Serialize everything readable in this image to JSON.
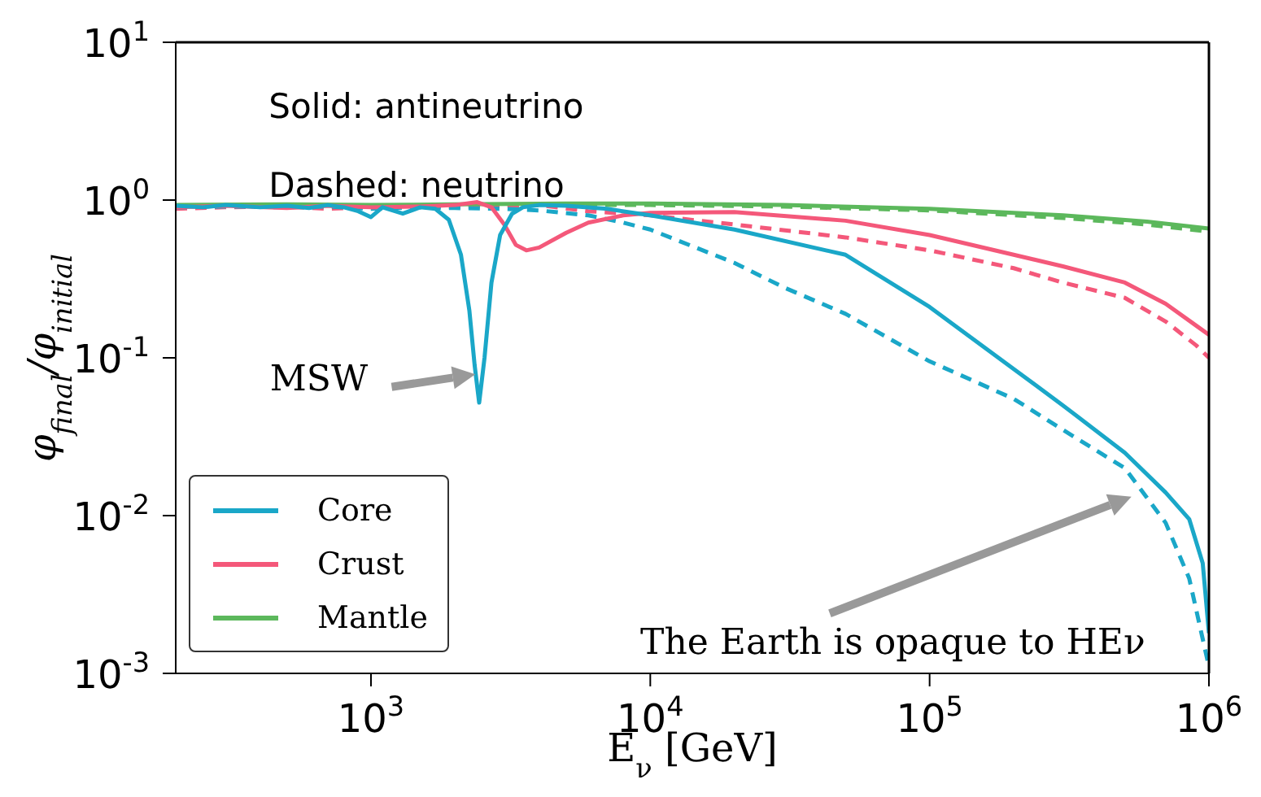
{
  "chart_data": {
    "type": "line",
    "xlabel": "E$_{ν}$ [GeV]",
    "ylabel": "φ$_{final}$/φ$_{initial}$",
    "log": "xy",
    "xlim": [
      200,
      1000000
    ],
    "ylim": [
      0.001,
      10
    ],
    "xticks": [
      {
        "value": 1000,
        "label": "10$^{3}$"
      },
      {
        "value": 10000,
        "label": "10$^{4}$"
      },
      {
        "value": 100000,
        "label": "10$^{5}$"
      },
      {
        "value": 1000000,
        "label": "10$^{6}$"
      }
    ],
    "yticks": [
      {
        "value": 0.001,
        "label": "10$^{-3}$"
      },
      {
        "value": 0.01,
        "label": "10$^{-2}$"
      },
      {
        "value": 0.1,
        "label": "10$^{-1}$"
      },
      {
        "value": 1,
        "label": "10$^{0}$"
      },
      {
        "value": 10,
        "label": "10$^{1}$"
      }
    ],
    "grid": false,
    "legend": "bottom left",
    "annotations": [
      "Solid: antineutrino",
      "Dashed: neutrino",
      "MSW",
      "The Earth is opaque to HEν"
    ],
    "series": [
      {
        "name": "Core",
        "color": "#1aa7c8",
        "line_style": "solid",
        "x": [
          200,
          250,
          300,
          400,
          500,
          600,
          700,
          800,
          900,
          1000,
          1100,
          1300,
          1500,
          1700,
          1900,
          2100,
          2250,
          2350,
          2440,
          2550,
          2700,
          2900,
          3200,
          3500,
          4000,
          5000,
          7000,
          10000,
          20000,
          50000,
          100000,
          200000,
          300000,
          500000,
          700000,
          850000,
          950000,
          1000000
        ],
        "values": [
          0.92,
          0.9,
          0.93,
          0.9,
          0.92,
          0.89,
          0.93,
          0.9,
          0.85,
          0.78,
          0.9,
          0.82,
          0.9,
          0.88,
          0.75,
          0.45,
          0.2,
          0.09,
          0.052,
          0.1,
          0.3,
          0.6,
          0.82,
          0.9,
          0.93,
          0.92,
          0.88,
          0.8,
          0.65,
          0.45,
          0.21,
          0.085,
          0.05,
          0.025,
          0.014,
          0.0095,
          0.005,
          0.0018
        ]
      },
      {
        "name": "Crust",
        "color": "#f4587a",
        "line_style": "solid",
        "x": [
          200,
          300,
          500,
          700,
          1000,
          1500,
          2000,
          2400,
          2700,
          3000,
          3300,
          3600,
          4000,
          5000,
          6000,
          8000,
          10000,
          20000,
          50000,
          100000,
          200000,
          300000,
          500000,
          700000,
          900000,
          1000000
        ],
        "values": [
          0.9,
          0.92,
          0.89,
          0.92,
          0.9,
          0.91,
          0.93,
          0.97,
          0.9,
          0.7,
          0.52,
          0.48,
          0.5,
          0.62,
          0.72,
          0.8,
          0.83,
          0.84,
          0.74,
          0.6,
          0.45,
          0.38,
          0.3,
          0.22,
          0.16,
          0.14
        ]
      },
      {
        "name": "Mantle",
        "color": "#5cb85c",
        "line_style": "solid",
        "x": [
          200,
          500,
          1000,
          2000,
          5000,
          10000,
          30000,
          100000,
          300000,
          600000,
          1000000
        ],
        "values": [
          0.93,
          0.94,
          0.93,
          0.94,
          0.95,
          0.95,
          0.93,
          0.88,
          0.8,
          0.73,
          0.66
        ]
      },
      {
        "color": "#1aa7c8",
        "line_style": "dashed",
        "x": [
          200,
          300,
          500,
          700,
          1000,
          1500,
          2000,
          3000,
          4000,
          6000,
          8000,
          10000,
          20000,
          30000,
          50000,
          100000,
          200000,
          300000,
          500000,
          700000,
          850000,
          1000000
        ],
        "values": [
          0.9,
          0.91,
          0.9,
          0.91,
          0.88,
          0.9,
          0.89,
          0.88,
          0.86,
          0.8,
          0.72,
          0.65,
          0.4,
          0.28,
          0.19,
          0.095,
          0.055,
          0.035,
          0.02,
          0.009,
          0.004,
          0.0011
        ]
      },
      {
        "color": "#f4587a",
        "line_style": "dashed",
        "x": [
          200,
          300,
          500,
          700,
          1000,
          1500,
          2000,
          3000,
          4000,
          6000,
          10000,
          20000,
          50000,
          100000,
          200000,
          300000,
          500000,
          700000,
          900000,
          1000000
        ],
        "values": [
          0.88,
          0.9,
          0.91,
          0.88,
          0.9,
          0.92,
          0.9,
          0.92,
          0.93,
          0.85,
          0.8,
          0.7,
          0.58,
          0.48,
          0.37,
          0.3,
          0.24,
          0.17,
          0.12,
          0.1
        ]
      },
      {
        "color": "#5cb85c",
        "line_style": "dashed",
        "x": [
          200,
          500,
          1000,
          2000,
          5000,
          10000,
          30000,
          100000,
          300000,
          600000,
          1000000
        ],
        "values": [
          0.9,
          0.92,
          0.9,
          0.92,
          0.93,
          0.93,
          0.91,
          0.86,
          0.77,
          0.7,
          0.63
        ]
      }
    ]
  }
}
